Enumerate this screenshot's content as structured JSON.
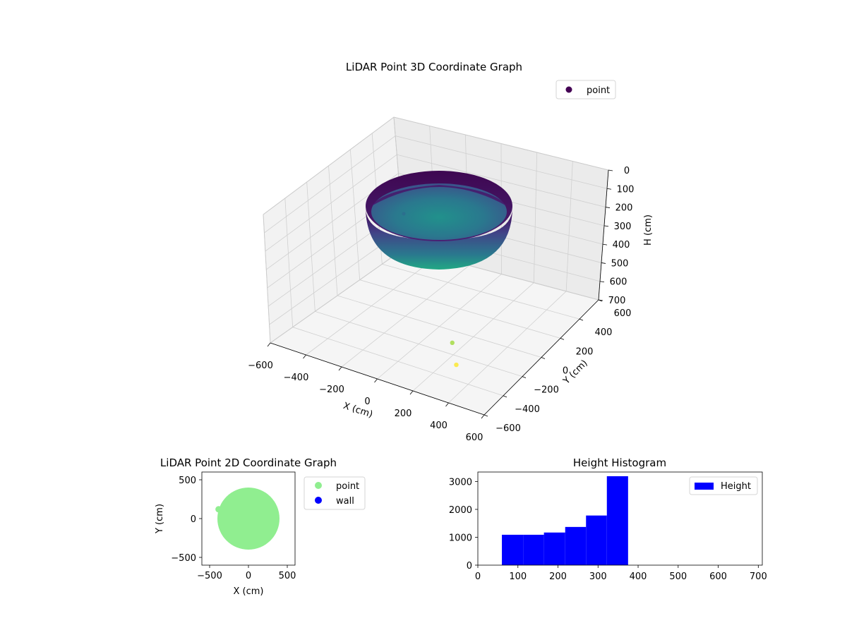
{
  "chart_data": [
    {
      "type": "scatter",
      "title": "LiDAR Point 3D Coordinate Graph",
      "xlabel": "X (cm)",
      "ylabel": "Y (cm)",
      "zlabel": "H (cm)",
      "xlim": [
        -600,
        600
      ],
      "ylim": [
        -600,
        600
      ],
      "zlim": [
        0,
        700
      ],
      "z_inverted": true,
      "x_ticks": [
        "−600",
        "−400",
        "−200",
        "0",
        "200",
        "400",
        "600"
      ],
      "y_ticks": [
        "−600",
        "−400",
        "−200",
        "0",
        "200",
        "400",
        "600"
      ],
      "z_ticks": [
        "0",
        "100",
        "200",
        "300",
        "400",
        "500",
        "600",
        "700"
      ],
      "colormap": "viridis",
      "grid": true,
      "legend": {
        "position": "top-right",
        "entries": [
          {
            "label": "point",
            "color": "#440154"
          }
        ]
      },
      "shape": {
        "kind": "hemisphere",
        "radius": 400,
        "rim_height": 200,
        "bottom_height": 400
      },
      "outliers": [
        {
          "x": 200,
          "y": -200,
          "h": 520,
          "color": "#a0da39"
        },
        {
          "x": 250,
          "y": -250,
          "h": 600,
          "color": "#fde725"
        }
      ],
      "grid_present": true
    },
    {
      "type": "scatter",
      "title": "LiDAR Point 2D Coordinate Graph",
      "xlabel": "X (cm)",
      "ylabel": "Y (cm)",
      "xlim": [
        -600,
        600
      ],
      "ylim": [
        -600,
        600
      ],
      "x_ticks": [
        -500,
        0,
        500
      ],
      "y_ticks": [
        -500,
        0,
        500
      ],
      "grid": false,
      "legend": {
        "position": "outside-right",
        "entries": [
          {
            "label": "point",
            "color": "#90ee90"
          },
          {
            "label": "wall",
            "color": "#0000ff"
          }
        ]
      },
      "series": [
        {
          "name": "point",
          "color": "#90ee90",
          "shape": "disk",
          "center": [
            0,
            0
          ],
          "radius": 400
        },
        {
          "name": "wall",
          "color": "#0000ff",
          "points": []
        }
      ],
      "extra_point": {
        "x": -385,
        "y": 120,
        "color": "#90ee90"
      }
    },
    {
      "type": "bar",
      "title": "Height Histogram",
      "xlim": [
        0,
        710
      ],
      "ylim": [
        0,
        3340
      ],
      "x_ticks": [
        0,
        100,
        200,
        300,
        400,
        500,
        600,
        700
      ],
      "y_ticks": [
        0,
        1000,
        2000,
        3000
      ],
      "color": "#0000ff",
      "grid": false,
      "legend": {
        "position": "top-right",
        "entries": [
          {
            "label": "Height",
            "color": "#0000ff"
          }
        ]
      },
      "bins": [
        {
          "from": 60,
          "to": 113,
          "count": 1090
        },
        {
          "from": 113,
          "to": 165,
          "count": 1090
        },
        {
          "from": 165,
          "to": 218,
          "count": 1170
        },
        {
          "from": 218,
          "to": 270,
          "count": 1370
        },
        {
          "from": 270,
          "to": 322,
          "count": 1780
        },
        {
          "from": 322,
          "to": 375,
          "count": 3190
        }
      ]
    }
  ]
}
